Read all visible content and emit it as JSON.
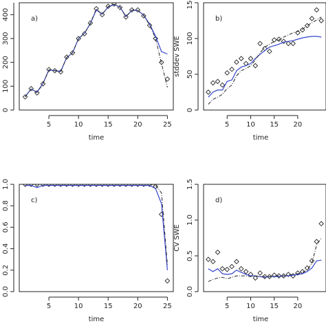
{
  "chart_data": [
    {
      "type": "line",
      "panel_label": "a)",
      "xlabel": "time",
      "ylabel": "",
      "xlim": [
        0,
        26
      ],
      "ylim": [
        0,
        450
      ],
      "xticks": [
        "5",
        "10",
        "15",
        "20",
        "25"
      ],
      "yticks": [
        "0",
        "100",
        "200",
        "300",
        "400"
      ],
      "series": [
        {
          "style": "points",
          "color": "#222222",
          "x": [
            1,
            2,
            3,
            4,
            5,
            6,
            7,
            8,
            9,
            10,
            11,
            12,
            13,
            14,
            15,
            16,
            17,
            18,
            19,
            20,
            21,
            22,
            23,
            24,
            25
          ],
          "y": [
            55,
            90,
            72,
            110,
            170,
            165,
            160,
            222,
            240,
            300,
            320,
            365,
            425,
            400,
            435,
            445,
            430,
            390,
            420,
            420,
            395,
            355,
            300,
            200,
            130
          ]
        },
        {
          "style": "solid",
          "color": "#3344cc",
          "x": [
            1,
            2,
            3,
            4,
            5,
            6,
            7,
            8,
            9,
            10,
            11,
            12,
            13,
            14,
            15,
            16,
            17,
            18,
            19,
            20,
            21,
            22,
            23,
            24,
            25
          ],
          "y": [
            57,
            88,
            75,
            112,
            168,
            166,
            162,
            220,
            240,
            300,
            322,
            363,
            420,
            402,
            432,
            442,
            432,
            392,
            418,
            418,
            398,
            360,
            310,
            245,
            235
          ]
        },
        {
          "style": "dashdot",
          "color": "#222222",
          "x": [
            1,
            2,
            3,
            4,
            5,
            6,
            7,
            8,
            9,
            10,
            11,
            12,
            13,
            14,
            15,
            16,
            17,
            18,
            19,
            20,
            21,
            22,
            23,
            24,
            25
          ],
          "y": [
            55,
            88,
            73,
            110,
            169,
            165,
            160,
            221,
            240,
            300,
            321,
            364,
            424,
            401,
            434,
            444,
            431,
            391,
            419,
            419,
            396,
            357,
            300,
            195,
            95
          ]
        }
      ]
    },
    {
      "type": "line",
      "panel_label": "b)",
      "xlabel": "time",
      "ylabel": "stddev SWE",
      "xlim": [
        0,
        26
      ],
      "ylim": [
        0,
        150
      ],
      "xticks": [
        "5",
        "10",
        "15",
        "20"
      ],
      "yticks": [
        "0",
        "50",
        "100",
        "150"
      ],
      "series": [
        {
          "style": "points",
          "color": "#222222",
          "x": [
            1,
            2,
            3,
            4,
            5,
            6,
            7,
            8,
            9,
            10,
            11,
            12,
            13,
            14,
            15,
            16,
            17,
            18,
            19,
            20,
            21,
            22,
            23,
            24,
            25
          ],
          "y": [
            25,
            38,
            40,
            35,
            52,
            57,
            67,
            72,
            65,
            72,
            62,
            93,
            86,
            82,
            98,
            99,
            96,
            93,
            93,
            108,
            112,
            118,
            128,
            140,
            125
          ]
        },
        {
          "style": "solid",
          "color": "#3344cc",
          "x": [
            1,
            2,
            3,
            4,
            5,
            6,
            7,
            8,
            9,
            10,
            11,
            12,
            13,
            14,
            15,
            16,
            17,
            18,
            19,
            20,
            21,
            22,
            23,
            24,
            25
          ],
          "y": [
            18,
            25,
            28,
            28,
            40,
            42,
            55,
            60,
            62,
            65,
            72,
            78,
            83,
            88,
            90,
            92,
            95,
            96,
            97,
            99,
            101,
            102,
            103,
            103,
            102
          ]
        },
        {
          "style": "dashdot",
          "color": "#222222",
          "x": [
            1,
            2,
            3,
            4,
            5,
            6,
            7,
            8,
            9,
            10,
            11,
            12,
            13,
            14,
            15,
            16,
            17,
            18,
            19,
            20,
            21,
            22,
            23,
            24,
            25
          ],
          "y": [
            8,
            15,
            18,
            22,
            30,
            35,
            48,
            55,
            58,
            62,
            70,
            80,
            88,
            92,
            96,
            98,
            102,
            105,
            108,
            110,
            113,
            118,
            122,
            126,
            130
          ]
        }
      ]
    },
    {
      "type": "line",
      "panel_label": "c)",
      "xlabel": "time",
      "ylabel": "",
      "xlim": [
        0,
        26
      ],
      "ylim": [
        0,
        1.0
      ],
      "xticks": [
        "5",
        "10",
        "15",
        "20",
        "25"
      ],
      "yticks": [
        "0.0",
        "0.2",
        "0.4",
        "0.6",
        "0.8",
        "1.0"
      ],
      "series": [
        {
          "style": "points",
          "color": "#222222",
          "x": [
            1,
            2,
            3,
            4,
            5,
            6,
            7,
            8,
            9,
            10,
            11,
            12,
            13,
            14,
            15,
            16,
            17,
            18,
            19,
            20,
            21,
            22,
            23,
            24,
            25
          ],
          "y": [
            1,
            1,
            1,
            1,
            1,
            1,
            1,
            1,
            1,
            1,
            1,
            1,
            1,
            1,
            1,
            1,
            1,
            1,
            1,
            1,
            1,
            1,
            0.98,
            0.72,
            0.1
          ]
        },
        {
          "style": "solid",
          "color": "#3344cc",
          "x": [
            1,
            2,
            3,
            4,
            5,
            6,
            7,
            8,
            9,
            10,
            11,
            12,
            13,
            14,
            15,
            16,
            17,
            18,
            19,
            20,
            21,
            22,
            23,
            24,
            25
          ],
          "y": [
            0.99,
            0.99,
            0.97,
            0.99,
            0.99,
            0.99,
            0.99,
            0.99,
            0.99,
            0.99,
            0.99,
            0.99,
            0.99,
            0.99,
            0.99,
            0.99,
            0.99,
            0.99,
            0.99,
            0.99,
            0.99,
            0.99,
            0.96,
            0.82,
            0.2
          ]
        },
        {
          "style": "dashdot",
          "color": "#222222",
          "x": [
            1,
            2,
            3,
            4,
            5,
            6,
            7,
            8,
            9,
            10,
            11,
            12,
            13,
            14,
            15,
            16,
            17,
            18,
            19,
            20,
            21,
            22,
            23,
            24,
            25
          ],
          "y": [
            1,
            1,
            1,
            1,
            1,
            1,
            1,
            1,
            1,
            1,
            1,
            1,
            1,
            1,
            1,
            1,
            1,
            1,
            1,
            1,
            1,
            1,
            0.99,
            0.92,
            0.25
          ]
        }
      ]
    },
    {
      "type": "line",
      "panel_label": "d)",
      "xlabel": "time",
      "ylabel": "CV SWE",
      "xlim": [
        0,
        26
      ],
      "ylim": [
        0,
        1.5
      ],
      "xticks": [
        "5",
        "10",
        "15",
        "20"
      ],
      "yticks": [
        "0.0",
        "0.5",
        "1.0",
        "1.5"
      ],
      "series": [
        {
          "style": "points",
          "color": "#222222",
          "x": [
            1,
            2,
            3,
            4,
            5,
            6,
            7,
            8,
            9,
            10,
            11,
            12,
            13,
            14,
            15,
            16,
            17,
            18,
            19,
            20,
            21,
            22,
            23,
            24,
            25
          ],
          "y": [
            0.45,
            0.42,
            0.55,
            0.32,
            0.31,
            0.35,
            0.42,
            0.32,
            0.28,
            0.24,
            0.19,
            0.26,
            0.21,
            0.21,
            0.23,
            0.22,
            0.22,
            0.24,
            0.22,
            0.26,
            0.28,
            0.33,
            0.43,
            0.7,
            0.95
          ]
        },
        {
          "style": "solid",
          "color": "#3344cc",
          "x": [
            1,
            2,
            3,
            4,
            5,
            6,
            7,
            8,
            9,
            10,
            11,
            12,
            13,
            14,
            15,
            16,
            17,
            18,
            19,
            20,
            21,
            22,
            23,
            24,
            25
          ],
          "y": [
            0.32,
            0.28,
            0.32,
            0.25,
            0.24,
            0.25,
            0.3,
            0.27,
            0.24,
            0.22,
            0.22,
            0.21,
            0.2,
            0.21,
            0.21,
            0.21,
            0.22,
            0.22,
            0.23,
            0.24,
            0.25,
            0.28,
            0.33,
            0.43,
            0.44
          ]
        },
        {
          "style": "dashdot",
          "color": "#222222",
          "x": [
            1,
            2,
            3,
            4,
            5,
            6,
            7,
            8,
            9,
            10,
            11,
            12,
            13,
            14,
            15,
            16,
            17,
            18,
            19,
            20,
            21,
            22,
            23,
            24,
            25
          ],
          "y": [
            0.14,
            0.17,
            0.19,
            0.2,
            0.18,
            0.2,
            0.22,
            0.22,
            0.22,
            0.21,
            0.22,
            0.21,
            0.21,
            0.21,
            0.22,
            0.22,
            0.22,
            0.23,
            0.24,
            0.25,
            0.27,
            0.3,
            0.4,
            0.65,
            0.75
          ]
        }
      ]
    }
  ]
}
